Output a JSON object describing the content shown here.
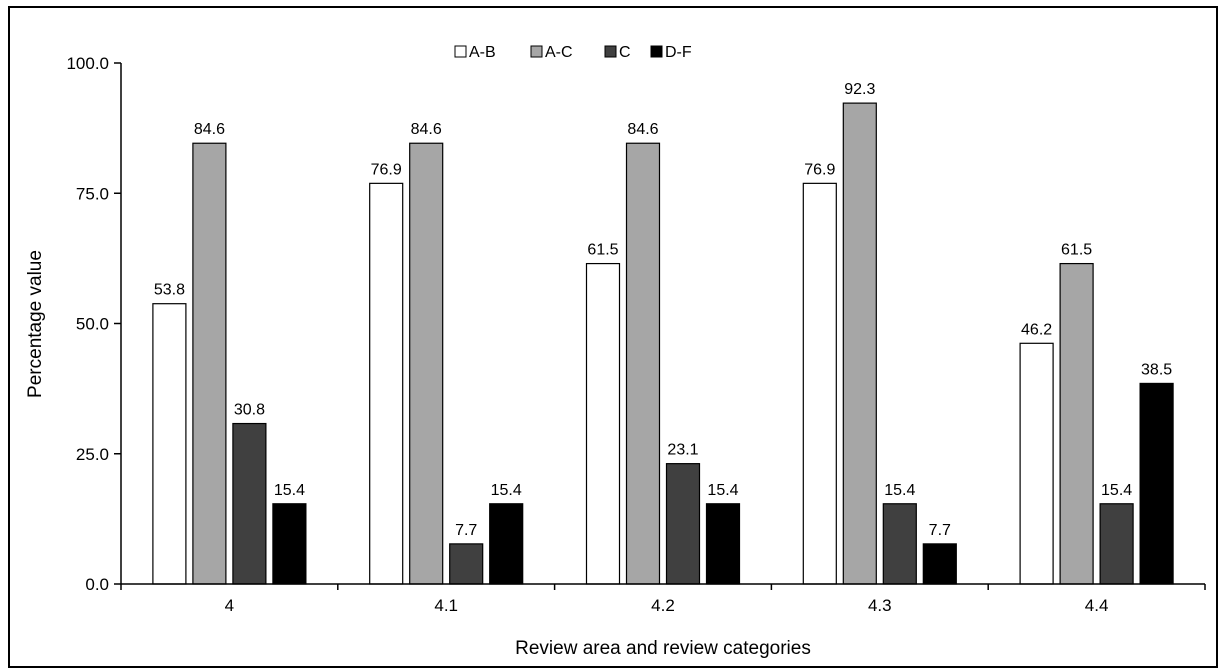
{
  "chart_data": {
    "type": "bar",
    "title": "",
    "xlabel": "Review area and review categories",
    "ylabel": "Percentage value",
    "categories": [
      "4",
      "4.1",
      "4.2",
      "4.3",
      "4.4"
    ],
    "ylim": [
      0,
      100
    ],
    "yticks": [
      "0.0",
      "25.0",
      "50.0",
      "75.0",
      "100.0"
    ],
    "ytick_values": [
      0,
      25,
      50,
      75,
      100
    ],
    "grid": false,
    "legend_position": "top-center",
    "series": [
      {
        "name": "A-B",
        "color": "#ffffff",
        "values": [
          53.8,
          76.9,
          61.5,
          76.9,
          46.2
        ],
        "labels": [
          "53.8",
          "76.9",
          "61.5",
          "76.9",
          "46.2"
        ]
      },
      {
        "name": "A-C",
        "color": "#a6a6a6",
        "values": [
          84.6,
          84.6,
          84.6,
          92.3,
          61.5
        ],
        "labels": [
          "84.6",
          "84.6",
          "84.6",
          "92.3",
          "61.5"
        ]
      },
      {
        "name": "C",
        "color": "#404040",
        "values": [
          30.8,
          7.7,
          23.1,
          15.4,
          15.4
        ],
        "labels": [
          "30.8",
          "7.7",
          "23.1",
          "15.4",
          "15.4"
        ]
      },
      {
        "name": "D-F",
        "color": "#000000",
        "values": [
          15.4,
          15.4,
          15.4,
          7.7,
          38.5
        ],
        "labels": [
          "15.4",
          "15.4",
          "15.4",
          "7.7",
          "38.5"
        ]
      }
    ]
  }
}
